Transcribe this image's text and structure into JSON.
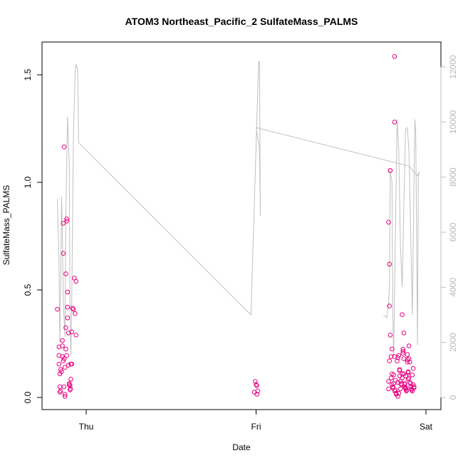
{
  "chart_data": {
    "type": "scatter",
    "title": "ATOM3 Northeast_Pacific_2 SulfateMass_PALMS",
    "xlabel": "Date",
    "ylabel": "SulfateMass_PALMS",
    "x_ticks": [
      "Thu",
      "Fri",
      "Sat"
    ],
    "y_ticks": [
      "0.0",
      "0.5",
      "1.0",
      "1.5"
    ],
    "y2_ticks": [
      "0",
      "2000",
      "4000",
      "6000",
      "8000",
      "10000",
      "12000"
    ],
    "ylim": [
      0,
      1.6
    ],
    "y2lim": [
      0,
      12500
    ],
    "xlim_days": [
      -0.2,
      2.05
    ],
    "x_tick_values": [
      0,
      1,
      2
    ],
    "grid": false,
    "colors": {
      "points": "#e6007e",
      "altitude_line": "#c0c0c0",
      "right_axis": "#c0c0c0",
      "frame": "#000000"
    },
    "series": [
      {
        "values": [
          [
            -0.17,
            0.41
          ],
          [
            -0.16,
            0.235
          ],
          [
            -0.16,
            0.155
          ],
          [
            -0.16,
            0.195
          ],
          [
            -0.155,
            0.11
          ],
          [
            -0.155,
            0.05
          ],
          [
            -0.155,
            0.025
          ],
          [
            -0.15,
            0.03
          ],
          [
            -0.15,
            0.13
          ],
          [
            -0.145,
            0.12
          ],
          [
            -0.14,
            0.265
          ],
          [
            -0.14,
            0.19
          ],
          [
            -0.14,
            0.24
          ],
          [
            -0.135,
            0.17
          ],
          [
            -0.135,
            0.81
          ],
          [
            -0.135,
            0.67
          ],
          [
            -0.13,
            1.165
          ],
          [
            -0.13,
            0.18
          ],
          [
            -0.13,
            0.05
          ],
          [
            -0.125,
            0.015
          ],
          [
            -0.125,
            0.005
          ],
          [
            -0.125,
            0.14
          ],
          [
            -0.12,
            0.325
          ],
          [
            -0.12,
            0.575
          ],
          [
            -0.12,
            0.225
          ],
          [
            -0.115,
            0.82
          ],
          [
            -0.115,
            0.83
          ],
          [
            -0.115,
            0.195
          ],
          [
            -0.11,
            0.42
          ],
          [
            -0.11,
            0.49
          ],
          [
            -0.11,
            0.37
          ],
          [
            -0.105,
            0.3
          ],
          [
            -0.105,
            0.15
          ],
          [
            -0.1,
            0.065
          ],
          [
            -0.1,
            0.06
          ],
          [
            -0.095,
            0.035
          ],
          [
            -0.095,
            0.055
          ],
          [
            -0.09,
            0.085
          ],
          [
            -0.09,
            0.155
          ],
          [
            -0.085,
            0.155
          ],
          [
            -0.085,
            0.305
          ],
          [
            -0.08,
            0.415
          ],
          [
            -0.075,
            0.41
          ],
          [
            -0.07,
            0.555
          ],
          [
            -0.065,
            0.39
          ],
          [
            -0.06,
            0.54
          ],
          [
            -0.06,
            0.29
          ],
          [
            -0.092,
            0.04
          ],
          [
            0.995,
            0.075
          ],
          [
            1.0,
            0.06
          ],
          [
            1.005,
            0.055
          ],
          [
            0.99,
            0.025
          ],
          [
            1.01,
            0.03
          ],
          [
            1.005,
            0.015
          ],
          [
            1.78,
            0.075
          ],
          [
            1.78,
            0.04
          ],
          [
            1.78,
            0.815
          ],
          [
            1.785,
            0.62
          ],
          [
            1.785,
            0.425
          ],
          [
            1.785,
            0.17
          ],
          [
            1.79,
            1.055
          ],
          [
            1.79,
            1.055
          ],
          [
            1.79,
            0.29
          ],
          [
            1.795,
            0.09
          ],
          [
            1.795,
            0.19
          ],
          [
            1.8,
            0.225
          ],
          [
            1.8,
            0.11
          ],
          [
            1.8,
            0.06
          ],
          [
            1.805,
            0.05
          ],
          [
            1.805,
            0.045
          ],
          [
            1.81,
            0.105
          ],
          [
            1.81,
            0.065
          ],
          [
            1.815,
            0.03
          ],
          [
            1.815,
            1.28
          ],
          [
            1.815,
            1.585
          ],
          [
            1.815,
            0.19
          ],
          [
            1.82,
            0.08
          ],
          [
            1.82,
            0.035
          ],
          [
            1.825,
            0.015
          ],
          [
            1.83,
            0.17
          ],
          [
            1.835,
            0.07
          ],
          [
            1.835,
            0.005
          ],
          [
            1.835,
            0.185
          ],
          [
            1.84,
            0.02
          ],
          [
            1.84,
            0.195
          ],
          [
            1.845,
            0.1
          ],
          [
            1.845,
            0.13
          ],
          [
            1.845,
            0.125
          ],
          [
            1.85,
            0.075
          ],
          [
            1.85,
            0.04
          ],
          [
            1.855,
            0.065
          ],
          [
            1.855,
            0.06
          ],
          [
            1.86,
            0.09
          ],
          [
            1.86,
            0.11
          ],
          [
            1.86,
            0.385
          ],
          [
            1.865,
            0.225
          ],
          [
            1.865,
            0.215
          ],
          [
            1.865,
            0.205
          ],
          [
            1.87,
            0.3
          ],
          [
            1.87,
            0.18
          ],
          [
            1.87,
            0.11
          ],
          [
            1.875,
            0.06
          ],
          [
            1.875,
            0.05
          ],
          [
            1.88,
            0.045
          ],
          [
            1.88,
            0.1
          ],
          [
            1.88,
            0.04
          ],
          [
            1.885,
            0.035
          ],
          [
            1.885,
            0.03
          ],
          [
            1.89,
            0.2
          ],
          [
            1.89,
            0.175
          ],
          [
            1.89,
            0.165
          ],
          [
            1.895,
            0.12
          ],
          [
            1.895,
            0.115
          ],
          [
            1.9,
            0.09
          ],
          [
            1.9,
            0.24
          ],
          [
            1.9,
            0.18
          ],
          [
            1.905,
            0.165
          ],
          [
            1.905,
            0.07
          ],
          [
            1.91,
            0.065
          ],
          [
            1.91,
            0.05
          ],
          [
            1.915,
            0.04
          ],
          [
            1.915,
            0.035
          ],
          [
            1.92,
            0.03
          ],
          [
            1.92,
            0.105
          ],
          [
            1.925,
            0.06
          ],
          [
            1.925,
            0.135
          ],
          [
            1.93,
            0.045
          ],
          [
            1.93,
            0.05
          ],
          [
            1.875,
            0.065
          ],
          [
            1.825,
            0.02
          ],
          [
            1.895,
            0.085
          ]
        ]
      }
    ],
    "altitude_line": [
      [
        -0.17,
        7200
      ],
      [
        -0.16,
        5000
      ],
      [
        -0.155,
        2000
      ],
      [
        -0.15,
        4000
      ],
      [
        -0.145,
        7300
      ],
      [
        -0.14,
        6000
      ],
      [
        -0.135,
        3500
      ],
      [
        -0.125,
        2200
      ],
      [
        -0.12,
        6500
      ],
      [
        -0.11,
        10200
      ],
      [
        -0.1,
        8500
      ],
      [
        -0.095,
        3000
      ],
      [
        -0.09,
        1500
      ],
      [
        -0.085,
        3500
      ],
      [
        -0.075,
        9500
      ],
      [
        -0.065,
        11800
      ],
      [
        -0.06,
        12100
      ],
      [
        -0.05,
        11900
      ],
      [
        -0.045,
        9250
      ],
      [
        0.97,
        3000
      ],
      [
        1.015,
        12200
      ],
      [
        1.02,
        12200
      ],
      [
        1.025,
        6600
      ],
      [
        1.02,
        9050
      ],
      [
        1.0,
        9800
      ],
      [
        1.9,
        8400
      ],
      [
        1.95,
        8050
      ],
      [
        1.96,
        8200
      ],
      [
        1.955,
        8050
      ],
      [
        1.95,
        1900
      ],
      [
        1.94,
        9500
      ],
      [
        1.935,
        10100
      ],
      [
        1.93,
        8000
      ],
      [
        1.92,
        3000
      ],
      [
        1.91,
        6000
      ],
      [
        1.9,
        9000
      ],
      [
        1.89,
        9800
      ],
      [
        1.88,
        9750
      ],
      [
        1.87,
        7000
      ],
      [
        1.86,
        4000
      ],
      [
        1.85,
        5500
      ],
      [
        1.84,
        9000
      ],
      [
        1.83,
        10100
      ],
      [
        1.82,
        6000
      ],
      [
        1.81,
        1500
      ],
      [
        1.805,
        3000
      ],
      [
        1.8,
        7800
      ],
      [
        1.79,
        8200
      ],
      [
        1.785,
        4000
      ],
      [
        1.78,
        3400
      ],
      [
        1.77,
        2900
      ],
      [
        1.75,
        3000
      ]
    ]
  }
}
